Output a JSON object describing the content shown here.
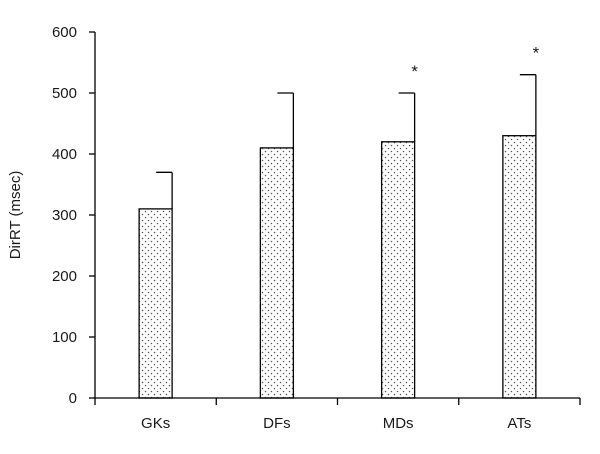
{
  "chart_data": {
    "type": "bar",
    "title": "",
    "xlabel": "",
    "ylabel": "DirRT (msec)",
    "categories": [
      "GKs",
      "DFs",
      "MDs",
      "ATs"
    ],
    "values": [
      310,
      410,
      420,
      430
    ],
    "error_upper": [
      370,
      500,
      500,
      530
    ],
    "annotations": [
      "",
      "",
      "*",
      "*"
    ],
    "ylim": [
      0,
      600
    ],
    "yticks": [
      0,
      100,
      200,
      300,
      400,
      500,
      600
    ],
    "grid": false,
    "bar_fill": "dotted",
    "colors": {
      "bar_outline": "#000000",
      "dots": "#555555",
      "axis": "#000000"
    }
  }
}
